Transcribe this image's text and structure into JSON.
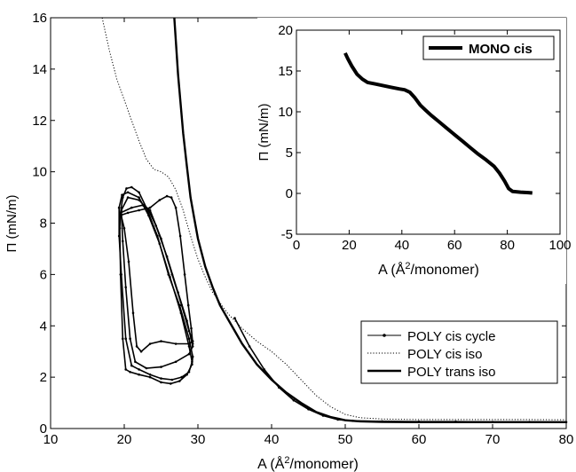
{
  "chart_data": [
    {
      "type": "line",
      "xlabel": "A (Å²/monomer)",
      "xlabel_base": "A (Å",
      "xlabel_sup": "2",
      "xlabel_tail": "/monomer)",
      "ylabel": "Π (mN/m)",
      "xlim": [
        10,
        80
      ],
      "ylim": [
        0,
        16
      ],
      "xticks": [
        10,
        20,
        30,
        40,
        50,
        60,
        70,
        80
      ],
      "yticks": [
        0,
        2,
        4,
        6,
        8,
        10,
        12,
        14,
        16
      ],
      "grid": false,
      "legend_position": "bottom-right",
      "series": [
        {
          "name": "POLY cis cycle",
          "style": "solid-dots",
          "loops": [
            [
              [
                19.5,
                8.4
              ],
              [
                19.8,
                9.0
              ],
              [
                20.3,
                9.35
              ],
              [
                21.0,
                9.4
              ],
              [
                22.0,
                9.2
              ],
              [
                23.0,
                8.6
              ],
              [
                24.5,
                7.5
              ],
              [
                26.0,
                6.0
              ],
              [
                27.5,
                4.8
              ],
              [
                28.8,
                3.5
              ],
              [
                29.3,
                2.8
              ],
              [
                29.2,
                2.5
              ],
              [
                28.5,
                2.1
              ],
              [
                27.5,
                1.85
              ],
              [
                26.3,
                1.75
              ],
              [
                25.0,
                1.8
              ],
              [
                23.5,
                2.0
              ],
              [
                22.0,
                2.1
              ],
              [
                20.8,
                2.2
              ],
              [
                20.2,
                2.3
              ],
              [
                19.8,
                3.5
              ],
              [
                19.5,
                6.0
              ],
              [
                19.4,
                7.8
              ],
              [
                19.5,
                8.4
              ]
            ],
            [
              [
                19.3,
                8.6
              ],
              [
                19.7,
                9.1
              ],
              [
                20.5,
                9.2
              ],
              [
                22.0,
                9.0
              ],
              [
                23.3,
                8.3
              ],
              [
                24.8,
                7.2
              ],
              [
                26.2,
                5.9
              ],
              [
                27.7,
                4.5
              ],
              [
                28.8,
                3.2
              ],
              [
                29.2,
                2.6
              ],
              [
                28.8,
                2.2
              ],
              [
                27.8,
                2.0
              ],
              [
                26.5,
                1.9
              ],
              [
                25.0,
                1.95
              ],
              [
                23.5,
                2.1
              ],
              [
                22.0,
                2.3
              ],
              [
                21.0,
                2.45
              ],
              [
                20.2,
                3.5
              ],
              [
                19.6,
                6.0
              ],
              [
                19.3,
                7.5
              ],
              [
                19.3,
                8.6
              ]
            ],
            [
              [
                19.6,
                8.5
              ],
              [
                20.5,
                9.0
              ],
              [
                22.0,
                8.9
              ],
              [
                23.3,
                8.5
              ],
              [
                24.3,
                7.9
              ],
              [
                25.8,
                6.7
              ],
              [
                27.3,
                5.3
              ],
              [
                28.5,
                4.2
              ],
              [
                29.3,
                3.2
              ],
              [
                28.8,
                2.9
              ],
              [
                27.0,
                2.6
              ],
              [
                25.0,
                2.4
              ],
              [
                23.0,
                2.35
              ],
              [
                21.5,
                2.6
              ],
              [
                20.8,
                3.5
              ],
              [
                20.2,
                5.5
              ],
              [
                19.8,
                7.3
              ],
              [
                19.6,
                8.5
              ]
            ],
            [
              [
                19.5,
                8.4
              ],
              [
                21.0,
                8.6
              ],
              [
                22.5,
                8.7
              ],
              [
                23.5,
                8.5
              ],
              [
                25.0,
                7.4
              ],
              [
                26.5,
                6.0
              ],
              [
                27.8,
                4.8
              ],
              [
                28.8,
                3.8
              ],
              [
                29.3,
                3.4
              ],
              [
                28.8,
                3.3
              ],
              [
                27.0,
                3.3
              ],
              [
                25.0,
                3.4
              ],
              [
                23.5,
                3.3
              ],
              [
                22.3,
                3.0
              ],
              [
                21.7,
                3.2
              ],
              [
                21.2,
                4.5
              ],
              [
                20.6,
                6.5
              ],
              [
                20.0,
                7.8
              ],
              [
                19.5,
                8.4
              ]
            ],
            [
              [
                19.5,
                8.3
              ],
              [
                20.5,
                8.4
              ],
              [
                22.0,
                8.5
              ],
              [
                23.5,
                8.6
              ],
              [
                24.8,
                8.9
              ],
              [
                25.8,
                9.05
              ],
              [
                26.4,
                9.0
              ],
              [
                27.0,
                8.6
              ],
              [
                27.6,
                7.5
              ],
              [
                28.2,
                6.0
              ],
              [
                28.7,
                4.8
              ],
              [
                29.1,
                3.9
              ],
              [
                29.3,
                3.3
              ]
            ]
          ],
          "values": [
            [
              35.0,
              4.3
            ],
            [
              37.0,
              3.2
            ],
            [
              39.0,
              2.3
            ],
            [
              41.0,
              1.6
            ],
            [
              43.0,
              1.1
            ],
            [
              45.0,
              0.75
            ],
            [
              47.0,
              0.5
            ],
            [
              49.0,
              0.35
            ],
            [
              51.0,
              0.3
            ],
            [
              55.0,
              0.28
            ],
            [
              60.0,
              0.27
            ],
            [
              65.0,
              0.27
            ],
            [
              70.0,
              0.26
            ],
            [
              75.0,
              0.26
            ],
            [
              80.0,
              0.25
            ]
          ]
        },
        {
          "name": "POLY cis iso",
          "style": "dotted",
          "values": [
            [
              17.0,
              16.0
            ],
            [
              18.0,
              14.7
            ],
            [
              19.0,
              13.6
            ],
            [
              20.0,
              12.8
            ],
            [
              21.0,
              12.0
            ],
            [
              22.0,
              11.2
            ],
            [
              23.0,
              10.5
            ],
            [
              24.0,
              10.1
            ],
            [
              25.0,
              10.0
            ],
            [
              26.0,
              9.8
            ],
            [
              27.0,
              9.3
            ],
            [
              28.0,
              8.5
            ],
            [
              29.0,
              7.5
            ],
            [
              30.0,
              6.6
            ],
            [
              31.0,
              5.9
            ],
            [
              32.0,
              5.3
            ],
            [
              33.0,
              4.9
            ],
            [
              34.0,
              4.5
            ],
            [
              35.0,
              4.2
            ],
            [
              36.0,
              3.9
            ],
            [
              38.0,
              3.4
            ],
            [
              40.0,
              3.0
            ],
            [
              42.0,
              2.5
            ],
            [
              44.0,
              1.9
            ],
            [
              46.0,
              1.3
            ],
            [
              48.0,
              0.85
            ],
            [
              50.0,
              0.55
            ],
            [
              52.0,
              0.42
            ],
            [
              55.0,
              0.37
            ],
            [
              60.0,
              0.35
            ],
            [
              65.0,
              0.35
            ],
            [
              70.0,
              0.35
            ],
            [
              75.0,
              0.35
            ],
            [
              80.0,
              0.34
            ]
          ]
        },
        {
          "name": "POLY trans iso",
          "style": "solid-thick",
          "values": [
            [
              26.8,
              16.0
            ],
            [
              27.3,
              13.8
            ],
            [
              28.0,
              11.5
            ],
            [
              28.5,
              10.2
            ],
            [
              29.0,
              9.0
            ],
            [
              29.5,
              8.2
            ],
            [
              30.0,
              7.4
            ],
            [
              31.0,
              6.3
            ],
            [
              32.0,
              5.5
            ],
            [
              33.0,
              4.8
            ],
            [
              34.0,
              4.3
            ],
            [
              35.0,
              3.8
            ],
            [
              36.0,
              3.3
            ],
            [
              37.0,
              2.9
            ],
            [
              38.0,
              2.5
            ],
            [
              40.0,
              1.9
            ],
            [
              42.0,
              1.4
            ],
            [
              44.0,
              1.0
            ],
            [
              46.0,
              0.65
            ],
            [
              48.0,
              0.45
            ],
            [
              50.0,
              0.32
            ],
            [
              52.0,
              0.28
            ],
            [
              55.0,
              0.26
            ],
            [
              60.0,
              0.25
            ],
            [
              65.0,
              0.25
            ],
            [
              70.0,
              0.25
            ],
            [
              75.0,
              0.25
            ],
            [
              80.0,
              0.25
            ]
          ]
        }
      ]
    },
    {
      "type": "line",
      "xlabel": "A (Å²/monomer)",
      "xlabel_base": "A (Å",
      "xlabel_sup": "2",
      "xlabel_tail": "/monomer)",
      "ylabel": "Π (mN/m)",
      "xlim": [
        0,
        100
      ],
      "ylim": [
        -5,
        20
      ],
      "xticks": [
        0,
        20,
        40,
        60,
        80,
        100
      ],
      "yticks": [
        -5,
        0,
        5,
        10,
        15,
        20
      ],
      "grid": false,
      "legend_position": "top-right",
      "series": [
        {
          "name": "MONO cis",
          "style": "solid-thick",
          "values": [
            [
              18.5,
              17.2
            ],
            [
              19.5,
              16.5
            ],
            [
              21.0,
              15.6
            ],
            [
              23.0,
              14.6
            ],
            [
              25.0,
              14.0
            ],
            [
              27.0,
              13.6
            ],
            [
              30.0,
              13.4
            ],
            [
              33.0,
              13.2
            ],
            [
              36.0,
              13.0
            ],
            [
              39.0,
              12.8
            ],
            [
              41.0,
              12.7
            ],
            [
              43.0,
              12.4
            ],
            [
              45.0,
              11.7
            ],
            [
              47.0,
              10.8
            ],
            [
              49.0,
              10.2
            ],
            [
              51.0,
              9.6
            ],
            [
              54.0,
              8.8
            ],
            [
              57.0,
              8.0
            ],
            [
              60.0,
              7.2
            ],
            [
              63.0,
              6.4
            ],
            [
              66.0,
              5.6
            ],
            [
              69.0,
              4.8
            ],
            [
              72.0,
              4.1
            ],
            [
              75.0,
              3.3
            ],
            [
              77.0,
              2.5
            ],
            [
              79.0,
              1.5
            ],
            [
              80.5,
              0.6
            ],
            [
              82.0,
              0.25
            ],
            [
              85.0,
              0.15
            ],
            [
              88.0,
              0.1
            ],
            [
              89.5,
              0.05
            ]
          ]
        }
      ]
    }
  ]
}
